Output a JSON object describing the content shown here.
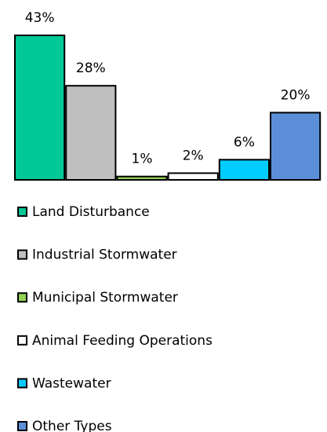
{
  "chart_data": {
    "type": "bar",
    "categories": [
      "Land Disturbance",
      "Industrial Stormwater",
      "Municipal Stormwater",
      "Animal Feeding Operations",
      "Wastewater",
      "Other Types"
    ],
    "series": [
      {
        "values": [
          43,
          28,
          1,
          2,
          6,
          20
        ],
        "value_labels": [
          "43%",
          "28%",
          "1%",
          "2%",
          "6%",
          "20%"
        ],
        "colors": [
          "#00c896",
          "#bfbfbf",
          "#92d050",
          "#ffffff",
          "#00ccff",
          "#5b8fd8"
        ]
      }
    ]
  }
}
